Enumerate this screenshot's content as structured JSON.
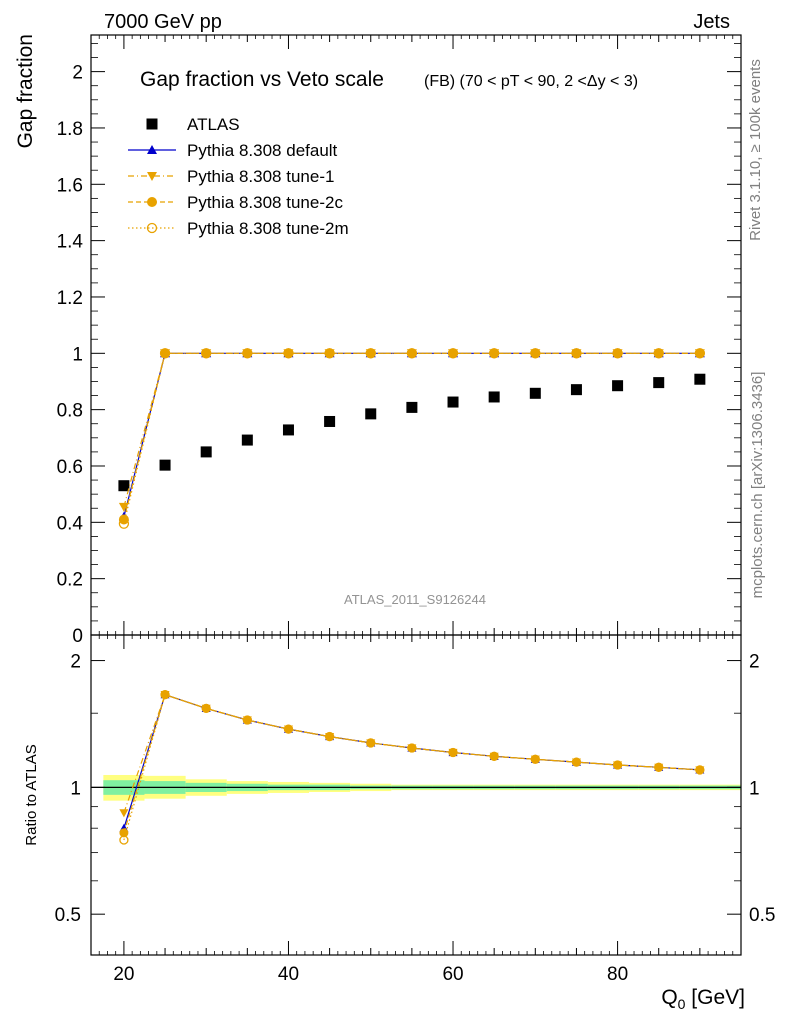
{
  "header": {
    "energy_label": "7000 GeV pp",
    "process_label": "Jets",
    "rivet_label": "Rivet 3.1.10, ≥ 100k events",
    "mcplots_label": "mcplots.cern.ch [arXiv:1306.3436]",
    "analysis_label": "ATLAS_2011_S9126244"
  },
  "chart_data": [
    {
      "type": "scatter",
      "title": "Gap fraction vs Veto scale",
      "subtitle": "(FB) (70 < pT <  90, 2 <Δy < 3)",
      "xlabel": "",
      "ylabel": "Gap fraction",
      "xlim": [
        16,
        95
      ],
      "ylim": [
        0,
        2.13
      ],
      "yticks": [
        0,
        0.2,
        0.4,
        0.6,
        0.8,
        1,
        1.2,
        1.4,
        1.6,
        1.8,
        2
      ],
      "ytick_labels": [
        "0",
        "0.2",
        "0.4",
        "0.6",
        "0.8",
        "1",
        "1.2",
        "1.4",
        "1.6",
        "1.8",
        "2"
      ],
      "legend_position": "top-left",
      "x": [
        20,
        25,
        30,
        35,
        40,
        45,
        50,
        55,
        60,
        65,
        70,
        75,
        80,
        85,
        90
      ],
      "series": [
        {
          "name": "ATLAS",
          "color": "#000000",
          "marker": "square",
          "line": "none",
          "values": [
            0.53,
            0.603,
            0.65,
            0.692,
            0.728,
            0.758,
            0.785,
            0.808,
            0.827,
            0.845,
            0.858,
            0.871,
            0.885,
            0.896,
            0.908
          ]
        },
        {
          "name": "Pythia 8.308 default",
          "color": "#0000cc",
          "marker": "triangle-up",
          "line": "solid",
          "values": [
            0.42,
            1,
            1,
            1,
            1,
            1,
            1,
            1,
            1,
            1,
            1,
            1,
            1,
            1,
            1
          ]
        },
        {
          "name": "Pythia 8.308 tune-1",
          "color": "#e8a200",
          "marker": "triangle-down",
          "line": "dashdot",
          "values": [
            0.455,
            1,
            1,
            1,
            1,
            1,
            1,
            1,
            1,
            1,
            1,
            1,
            1,
            1,
            1
          ]
        },
        {
          "name": "Pythia 8.308 tune-2c",
          "color": "#e8a200",
          "marker": "circle",
          "line": "dashed",
          "values": [
            0.41,
            1,
            1,
            1,
            1,
            1,
            1,
            1,
            1,
            1,
            1,
            1,
            1,
            1,
            1
          ]
        },
        {
          "name": "Pythia 8.308 tune-2m",
          "color": "#e8a200",
          "marker": "circle-open",
          "line": "dotted",
          "values": [
            0.395,
            1,
            1,
            1,
            1,
            1,
            1,
            1,
            1,
            1,
            1,
            1,
            1,
            1,
            1
          ]
        }
      ]
    },
    {
      "type": "line",
      "title": "",
      "xlabel": "Q",
      "xlabel_sub": "0",
      "xlabel_unit": " [GeV]",
      "ylabel": "Ratio to ATLAS",
      "xlim": [
        16,
        95
      ],
      "ylim": [
        0.4,
        2.3
      ],
      "log_y": true,
      "xticks": [
        20,
        40,
        60,
        80
      ],
      "xtick_labels": [
        "20",
        "40",
        "60",
        "80"
      ],
      "yticks": [
        0.5,
        1,
        2
      ],
      "ytick_labels": [
        "0.5",
        "1",
        "2"
      ],
      "x": [
        20,
        25,
        30,
        35,
        40,
        45,
        50,
        55,
        60,
        65,
        70,
        75,
        80,
        85,
        90
      ],
      "band_x_edges": [
        17.5,
        22.5,
        27.5,
        32.5,
        37.5,
        42.5,
        47.5,
        52.5,
        57.5,
        62.5,
        67.5,
        72.5,
        77.5,
        82.5,
        87.5,
        95
      ],
      "band_inner": [
        [
          0.96,
          1.04
        ],
        [
          0.965,
          1.035
        ],
        [
          0.975,
          1.025
        ],
        [
          0.98,
          1.02
        ],
        [
          0.985,
          1.015
        ],
        [
          0.985,
          1.015
        ],
        [
          0.99,
          1.01
        ],
        [
          0.99,
          1.01
        ],
        [
          0.99,
          1.01
        ],
        [
          0.99,
          1.01
        ],
        [
          0.99,
          1.01
        ],
        [
          0.99,
          1.01
        ],
        [
          0.99,
          1.01
        ],
        [
          0.99,
          1.01
        ],
        [
          0.99,
          1.01
        ]
      ],
      "band_outer": [
        [
          0.93,
          1.07
        ],
        [
          0.94,
          1.065
        ],
        [
          0.955,
          1.045
        ],
        [
          0.965,
          1.035
        ],
        [
          0.97,
          1.03
        ],
        [
          0.975,
          1.025
        ],
        [
          0.98,
          1.02
        ],
        [
          0.985,
          1.015
        ],
        [
          0.985,
          1.015
        ],
        [
          0.985,
          1.015
        ],
        [
          0.985,
          1.015
        ],
        [
          0.985,
          1.015
        ],
        [
          0.985,
          1.015
        ],
        [
          0.985,
          1.015
        ],
        [
          0.985,
          1.015
        ]
      ],
      "series": [
        {
          "name": "Pythia 8.308 default",
          "color": "#0000cc",
          "marker": "triangle-up",
          "line": "solid",
          "values": [
            0.8,
            1.66,
            1.54,
            1.445,
            1.375,
            1.32,
            1.275,
            1.24,
            1.21,
            1.185,
            1.166,
            1.148,
            1.13,
            1.116,
            1.1
          ]
        },
        {
          "name": "Pythia 8.308 tune-1",
          "color": "#e8a200",
          "marker": "triangle-down",
          "line": "dashdot",
          "values": [
            0.87,
            1.66,
            1.54,
            1.445,
            1.375,
            1.32,
            1.275,
            1.24,
            1.21,
            1.185,
            1.166,
            1.148,
            1.13,
            1.116,
            1.1
          ]
        },
        {
          "name": "Pythia 8.308 tune-2c",
          "color": "#e8a200",
          "marker": "circle",
          "line": "dashed",
          "values": [
            0.78,
            1.66,
            1.54,
            1.445,
            1.375,
            1.32,
            1.275,
            1.24,
            1.21,
            1.185,
            1.166,
            1.148,
            1.13,
            1.116,
            1.1
          ]
        },
        {
          "name": "Pythia 8.308 tune-2m",
          "color": "#e8a200",
          "marker": "circle-open",
          "line": "dotted",
          "values": [
            0.75,
            1.66,
            1.54,
            1.445,
            1.375,
            1.32,
            1.275,
            1.24,
            1.21,
            1.185,
            1.166,
            1.148,
            1.13,
            1.116,
            1.1
          ]
        }
      ]
    }
  ]
}
